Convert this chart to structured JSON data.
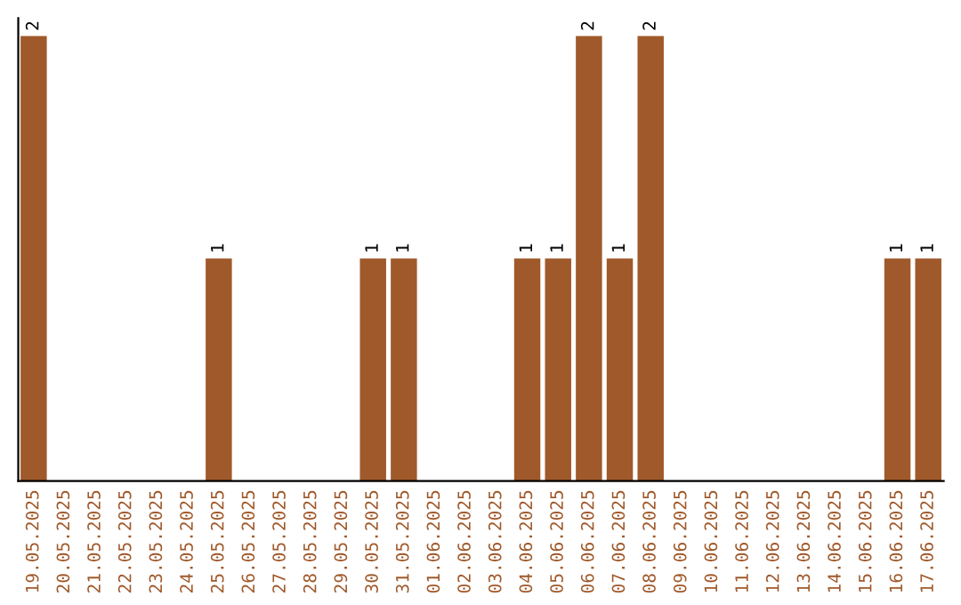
{
  "chart_data": {
    "type": "bar",
    "color": "#a0592a",
    "categories": [
      "19.05.2025",
      "20.05.2025",
      "21.05.2025",
      "22.05.2025",
      "23.05.2025",
      "24.05.2025",
      "25.05.2025",
      "26.05.2025",
      "27.05.2025",
      "28.05.2025",
      "29.05.2025",
      "30.05.2025",
      "31.05.2025",
      "01.06.2025",
      "02.06.2025",
      "03.06.2025",
      "04.06.2025",
      "05.06.2025",
      "06.06.2025",
      "07.06.2025",
      "08.06.2025",
      "09.06.2025",
      "10.06.2025",
      "11.06.2025",
      "12.06.2025",
      "13.06.2025",
      "14.06.2025",
      "15.06.2025",
      "16.06.2025",
      "17.06.2025"
    ],
    "values": [
      2,
      0,
      0,
      0,
      0,
      0,
      1,
      0,
      0,
      0,
      0,
      1,
      1,
      0,
      0,
      0,
      1,
      1,
      2,
      1,
      2,
      0,
      0,
      0,
      0,
      0,
      0,
      0,
      1,
      1
    ],
    "value_labels": [
      "2",
      null,
      null,
      null,
      null,
      null,
      "1",
      null,
      null,
      null,
      null,
      "1",
      "1",
      null,
      null,
      null,
      "1",
      "1",
      "2",
      "1",
      "2",
      null,
      null,
      null,
      null,
      null,
      null,
      null,
      "1",
      "1"
    ],
    "tick_labels": "x",
    "grid": false,
    "legend": false
  }
}
